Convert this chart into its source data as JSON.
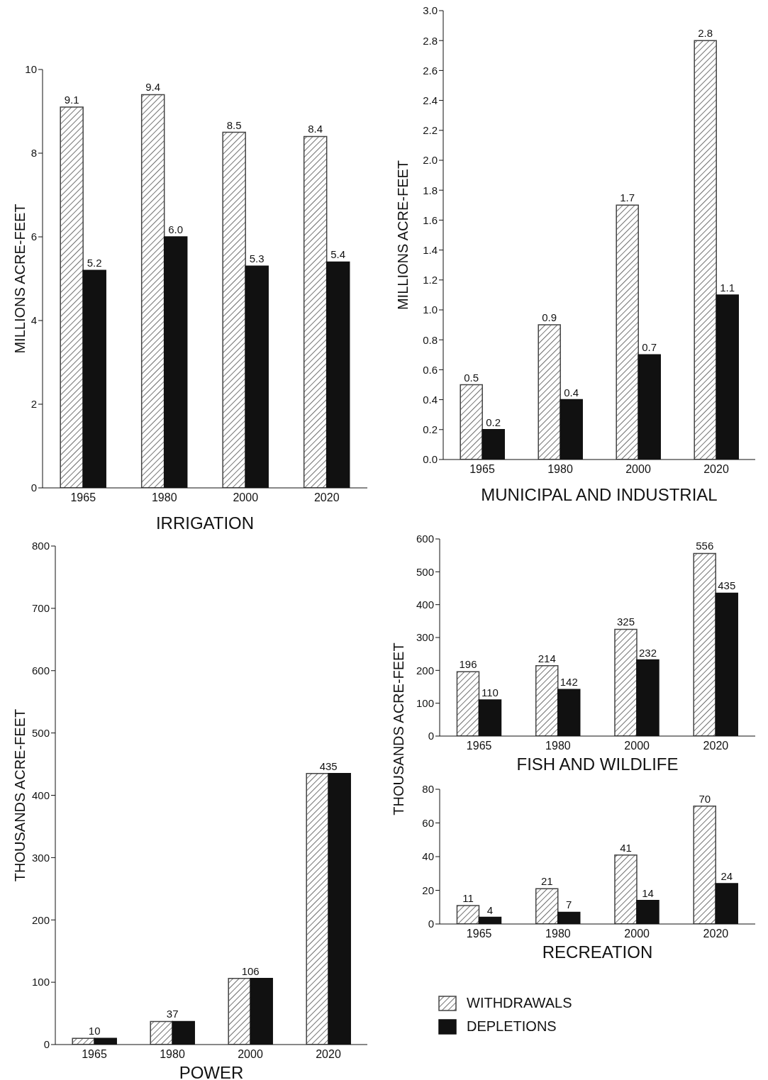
{
  "chart_data": [
    {
      "type": "bar",
      "xlabel": "IRRIGATION",
      "ylabel": "MILLIONS ACRE-FEET",
      "categories": [
        "1965",
        "1980",
        "2000",
        "2020"
      ],
      "ylim": [
        0,
        10
      ],
      "yticks": [
        0,
        2,
        4,
        6,
        8,
        10
      ],
      "grid": false,
      "legend": false,
      "series": [
        {
          "color": "#444444",
          "values": [
            9.1,
            9.4,
            8.5,
            8.4
          ],
          "value_labels": [
            "9.1",
            "9.4",
            "8.5",
            "8.4"
          ]
        },
        {
          "color": "#111111",
          "values": [
            5.2,
            6.0,
            5.3,
            5.4
          ],
          "value_labels": [
            "5.2",
            "6.0",
            "5.3",
            "5.4"
          ]
        }
      ]
    },
    {
      "type": "bar",
      "xlabel": "MUNICIPAL AND INDUSTRIAL",
      "ylabel": "MILLIONS ACRE-FEET",
      "categories": [
        "1965",
        "1980",
        "2000",
        "2020"
      ],
      "ylim": [
        0,
        3
      ],
      "yticks": [
        {
          "value": 0,
          "label": "0.0"
        },
        0.2,
        0.4,
        0.6,
        0.8,
        {
          "value": 1,
          "label": "1.0"
        },
        1.2,
        1.4,
        1.6,
        1.8,
        {
          "value": 2,
          "label": "2.0"
        },
        2.2,
        2.4,
        2.6,
        2.8,
        {
          "value": 3,
          "label": "3.0"
        }
      ],
      "grid": false,
      "legend": false,
      "series": [
        {
          "color": "#444444",
          "values": [
            0.5,
            0.9,
            1.7,
            2.8
          ],
          "value_labels": [
            "0.5",
            "0.9",
            "1.7",
            "2.8"
          ]
        },
        {
          "color": "#111111",
          "values": [
            0.2,
            0.4,
            0.7,
            1.1
          ],
          "value_labels": [
            "0.2",
            "0.4",
            "0.7",
            "1.1"
          ]
        }
      ]
    },
    {
      "type": "bar",
      "xlabel": "POWER",
      "ylabel": "THOUSANDS ACRE-FEET",
      "categories": [
        "1965",
        "1980",
        "2000",
        "2020"
      ],
      "ylim": [
        0,
        800
      ],
      "yticks": [
        0,
        100,
        200,
        300,
        400,
        500,
        600,
        700,
        800
      ],
      "grid": false,
      "legend": false,
      "series": [
        {
          "color": "#444444",
          "values": [
            10,
            37,
            106,
            435
          ],
          "value_labels": [
            "10",
            "37",
            "106",
            "435"
          ]
        },
        {
          "color": "#111111",
          "values": [
            10,
            37,
            106,
            435
          ]
        }
      ]
    },
    {
      "type": "bar",
      "xlabel": "FISH AND WILDLIFE",
      "ylabel": "THOUSANDS ACRE-FEET",
      "categories": [
        "1965",
        "1980",
        "2000",
        "2020"
      ],
      "ylim": [
        0,
        600
      ],
      "yticks": [
        0,
        100,
        200,
        300,
        400,
        500,
        600
      ],
      "grid": false,
      "legend": false,
      "series": [
        {
          "color": "#444444",
          "values": [
            196,
            214,
            325,
            556
          ],
          "value_labels": [
            "196",
            "214",
            "325",
            "556"
          ]
        },
        {
          "color": "#111111",
          "values": [
            110,
            142,
            232,
            435
          ],
          "value_labels": [
            "110",
            "142",
            "232",
            "435"
          ]
        }
      ]
    },
    {
      "type": "bar",
      "xlabel": "RECREATION",
      "categories": [
        "1965",
        "1980",
        "2000",
        "2020"
      ],
      "ylim": [
        0,
        80
      ],
      "yticks": [
        0,
        20,
        40,
        60,
        80
      ],
      "grid": false,
      "legend": "bottom",
      "series": [
        {
          "name": "WITHDRAWALS",
          "color": "#444444",
          "values": [
            11,
            21,
            41,
            70
          ],
          "value_labels": [
            "11",
            "21",
            "41",
            "70"
          ]
        },
        {
          "name": "DEPLETIONS",
          "color": "#111111",
          "values": [
            4,
            7,
            14,
            24
          ],
          "value_labels": [
            "4",
            "7",
            "14",
            "24"
          ]
        }
      ]
    }
  ]
}
